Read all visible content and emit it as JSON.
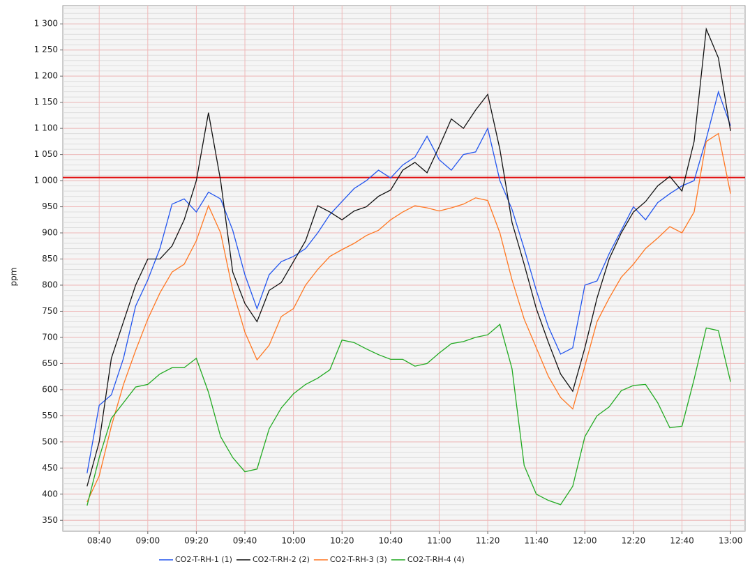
{
  "chart_data": {
    "type": "line",
    "y_label": "ppm",
    "x": [
      "08:35",
      "08:40",
      "08:45",
      "08:50",
      "08:55",
      "09:00",
      "09:05",
      "09:10",
      "09:15",
      "09:20",
      "09:25",
      "09:30",
      "09:35",
      "09:40",
      "09:45",
      "09:50",
      "09:55",
      "10:00",
      "10:05",
      "10:10",
      "10:15",
      "10:20",
      "10:25",
      "10:30",
      "10:35",
      "10:40",
      "10:45",
      "10:50",
      "10:55",
      "11:00",
      "11:05",
      "11:10",
      "11:15",
      "11:20",
      "11:25",
      "11:30",
      "11:35",
      "11:40",
      "11:45",
      "11:50",
      "11:55",
      "12:00",
      "12:05",
      "12:10",
      "12:15",
      "12:20",
      "12:25",
      "12:30",
      "12:35",
      "12:40",
      "12:45",
      "12:50",
      "12:55",
      "13:00"
    ],
    "xlim": [
      "08:25",
      "13:06"
    ],
    "xticks": [
      "08:40",
      "09:00",
      "09:20",
      "09:40",
      "10:00",
      "10:20",
      "10:40",
      "11:00",
      "11:20",
      "11:40",
      "12:00",
      "12:20",
      "12:40",
      "13:00"
    ],
    "ylim": [
      329,
      1335
    ],
    "yticks": [
      350,
      400,
      450,
      500,
      550,
      600,
      650,
      700,
      750,
      800,
      850,
      900,
      950,
      {
        "value": 1000,
        "label": "1 000"
      },
      {
        "value": 1050,
        "label": "1 050"
      },
      {
        "value": 1100,
        "label": "1 100"
      },
      {
        "value": 1150,
        "label": "1 150"
      },
      {
        "value": 1200,
        "label": "1 200"
      },
      {
        "value": 1250,
        "label": "1 250"
      },
      {
        "value": 1300,
        "label": "1 300"
      }
    ],
    "minor_ystep": 10,
    "grid": true,
    "legend": "bottom",
    "reference_line": {
      "value": 1006,
      "color": "#e01010"
    },
    "series": [
      {
        "name": "CO2-T-RH-1 (1)",
        "color": "#2255ee",
        "values": [
          440,
          570,
          590,
          660,
          760,
          810,
          870,
          955,
          965,
          940,
          978,
          965,
          905,
          820,
          755,
          820,
          845,
          855,
          870,
          900,
          935,
          960,
          985,
          1000,
          1020,
          1005,
          1030,
          1045,
          1085,
          1040,
          1020,
          1050,
          1055,
          1100,
          1000,
          945,
          870,
          790,
          720,
          668,
          680,
          800,
          808,
          860,
          905,
          950,
          925,
          958,
          975,
          990,
          1000,
          1080,
          1170,
          1105
        ]
      },
      {
        "name": "CO2-T-RH-2 (2)",
        "color": "#111111",
        "values": [
          415,
          500,
          660,
          730,
          800,
          850,
          850,
          875,
          925,
          1000,
          1130,
          1000,
          825,
          765,
          730,
          790,
          805,
          845,
          885,
          952,
          940,
          925,
          942,
          950,
          970,
          982,
          1020,
          1035,
          1015,
          1065,
          1118,
          1100,
          1135,
          1165,
          1060,
          920,
          840,
          755,
          690,
          630,
          597,
          680,
          775,
          850,
          900,
          940,
          960,
          990,
          1008,
          980,
          1075,
          1290,
          1235,
          1095
        ]
      },
      {
        "name": "CO2-T-RH-3 (3)",
        "color": "#ff7722",
        "values": [
          385,
          435,
          530,
          610,
          675,
          735,
          785,
          825,
          840,
          885,
          952,
          900,
          790,
          710,
          657,
          685,
          740,
          755,
          800,
          830,
          855,
          868,
          880,
          895,
          905,
          925,
          940,
          952,
          948,
          942,
          948,
          955,
          967,
          962,
          900,
          810,
          735,
          680,
          625,
          585,
          563,
          645,
          730,
          775,
          815,
          840,
          870,
          890,
          912,
          900,
          940,
          1075,
          1090,
          975
        ]
      },
      {
        "name": "CO2-T-RH-4 (4)",
        "color": "#22aa22",
        "values": [
          378,
          470,
          545,
          575,
          605,
          610,
          630,
          642,
          642,
          660,
          595,
          510,
          470,
          443,
          448,
          525,
          565,
          592,
          610,
          622,
          638,
          695,
          690,
          678,
          667,
          658,
          658,
          645,
          650,
          670,
          688,
          692,
          700,
          705,
          725,
          640,
          455,
          400,
          388,
          380,
          415,
          510,
          550,
          567,
          598,
          608,
          610,
          575,
          527,
          530,
          620,
          718,
          713,
          615
        ]
      }
    ]
  }
}
